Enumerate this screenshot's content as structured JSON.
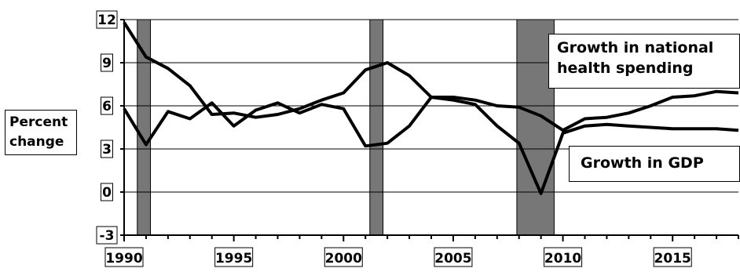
{
  "chart_data": {
    "type": "line",
    "xlim": [
      1990,
      2018
    ],
    "ylim": [
      -3,
      12
    ],
    "x_ticks": [
      {
        "value": 1990,
        "label": "1990"
      },
      {
        "value": 1995,
        "label": "1995"
      },
      {
        "value": 2000,
        "label": "2000"
      },
      {
        "value": 2005,
        "label": "2005"
      },
      {
        "value": 2010,
        "label": "2010"
      },
      {
        "value": 2015,
        "label": "2015"
      }
    ],
    "y_ticks": [
      {
        "value": 12,
        "label": "12"
      },
      {
        "value": 9,
        "label": "9"
      },
      {
        "value": 6,
        "label": "6"
      },
      {
        "value": 3,
        "label": "3"
      },
      {
        "value": 0,
        "label": "0"
      },
      {
        "value": -3,
        "label": "-3"
      }
    ],
    "ylabel": "Percent change",
    "grid": "horizontal",
    "recessions": [
      [
        1990.6,
        1991.2
      ],
      [
        2001.2,
        2001.8
      ],
      [
        2007.9,
        2009.6
      ]
    ],
    "series": [
      {
        "name": "Growth in national health spending",
        "line_1": "Growth in national",
        "line_2": "health spending",
        "x": [
          1990,
          1991,
          1992,
          1993,
          1994,
          1995,
          1996,
          1997,
          1998,
          1999,
          2000,
          2001,
          2002,
          2003,
          2004,
          2005,
          2006,
          2007,
          2008,
          2009,
          2010,
          2011,
          2012,
          2013,
          2014,
          2015,
          2016,
          2017,
          2018
        ],
        "values": [
          11.8,
          9.4,
          8.6,
          7.4,
          5.4,
          5.5,
          5.2,
          5.4,
          5.8,
          6.4,
          6.9,
          8.5,
          9.0,
          8.1,
          6.6,
          6.6,
          6.4,
          6.0,
          5.9,
          5.3,
          4.3,
          5.1,
          5.2,
          5.5,
          6.0,
          6.6,
          6.7,
          7.0,
          6.9
        ]
      },
      {
        "name": "Growth in GDP",
        "x": [
          1990,
          1991,
          1992,
          1993,
          1994,
          1995,
          1996,
          1997,
          1998,
          1999,
          2000,
          2001,
          2002,
          2003,
          2004,
          2005,
          2006,
          2007,
          2008,
          2009,
          2010,
          2011,
          2012,
          2013,
          2014,
          2015,
          2016,
          2017,
          2018
        ],
        "values": [
          5.8,
          3.3,
          5.6,
          5.1,
          6.2,
          4.6,
          5.7,
          6.2,
          5.5,
          6.1,
          5.8,
          3.2,
          3.4,
          4.6,
          6.6,
          6.4,
          6.1,
          4.6,
          3.4,
          -0.1,
          4.1,
          4.6,
          4.7,
          4.6,
          4.5,
          4.4,
          4.4,
          4.4,
          4.3
        ]
      }
    ]
  }
}
